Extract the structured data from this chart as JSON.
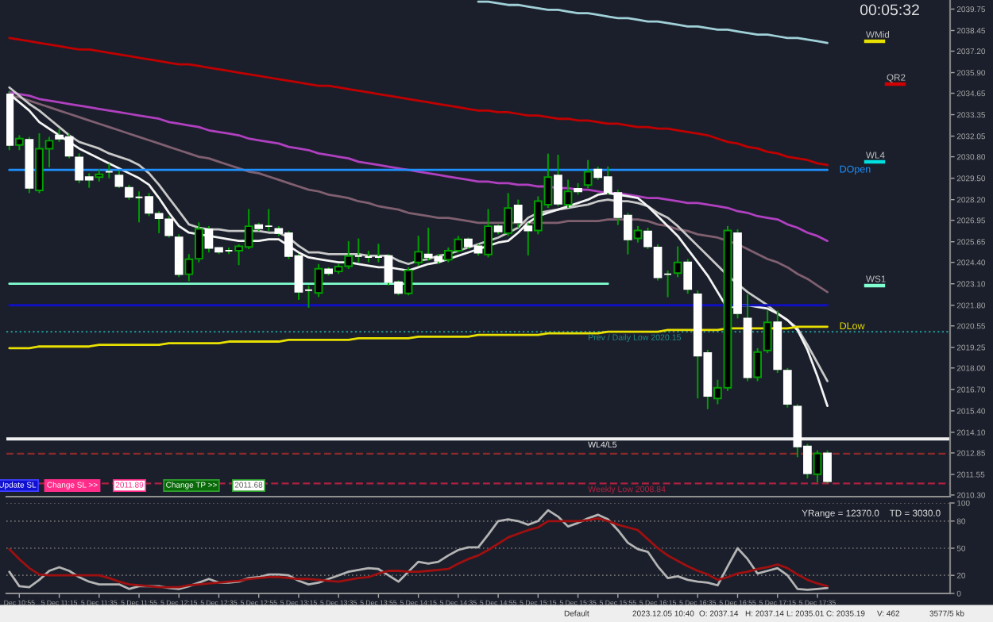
{
  "chart_data": [
    {
      "type": "candlestick",
      "tick_labels": "y",
      "categories": [
        null,
        null,
        null,
        null,
        null,
        null,
        null,
        null,
        null,
        null,
        null,
        null,
        null,
        null,
        null,
        null,
        null,
        null,
        null,
        null,
        null,
        null,
        null,
        null,
        null,
        null,
        null,
        null,
        null,
        null,
        null,
        null,
        null,
        null,
        null,
        null,
        null,
        null,
        null,
        null,
        null,
        null,
        null,
        null,
        null,
        null,
        null,
        null,
        null,
        null,
        null,
        null,
        null,
        null,
        null,
        null,
        null,
        null,
        null,
        null,
        null,
        null,
        null,
        null,
        null,
        null,
        null,
        null,
        null,
        null,
        null,
        null,
        null,
        null,
        null,
        null,
        null,
        null,
        null,
        null,
        null,
        null,
        null
      ],
      "ohlc": [
        [
          2034.58,
          2034.8,
          2031.2,
          2031.51
        ],
        [
          2031.51,
          2032.1,
          2031.2,
          2031.9
        ],
        [
          2031.83,
          2032.0,
          2028.6,
          2028.92
        ],
        [
          2028.76,
          2032.22,
          2028.6,
          2031.28
        ],
        [
          2031.28,
          2032.0,
          2030.15,
          2031.77
        ],
        [
          2032.09,
          2032.48,
          2031.7,
          2031.9
        ],
        [
          2032.0,
          2032.2,
          2030.7,
          2030.86
        ],
        [
          2030.76,
          2031.0,
          2029.2,
          2029.41
        ],
        [
          2029.57,
          2029.8,
          2028.92,
          2029.41
        ],
        [
          2029.57,
          2030.05,
          2029.3,
          2029.73
        ],
        [
          2029.89,
          2030.38,
          2029.5,
          2029.89
        ],
        [
          2029.66,
          2029.96,
          2028.9,
          2029.02
        ],
        [
          2028.92,
          2029.1,
          2028.2,
          2028.37
        ],
        [
          2028.34,
          2028.7,
          2026.82,
          2028.34
        ],
        [
          2028.37,
          2028.6,
          2027.2,
          2027.4
        ],
        [
          2027.34,
          2027.5,
          2026.17,
          2027.08
        ],
        [
          2027.01,
          2027.2,
          2025.9,
          2026.04
        ],
        [
          2025.91,
          2026.1,
          2023.5,
          2023.68
        ],
        [
          2023.68,
          2024.9,
          2023.26,
          2024.59
        ],
        [
          2024.62,
          2026.82,
          2024.4,
          2026.43
        ],
        [
          2026.4,
          2026.6,
          2025.0,
          2025.27
        ],
        [
          2025.27,
          2025.3,
          2024.9,
          2025.04
        ],
        [
          2025.11,
          2025.3,
          2024.9,
          2025.11
        ],
        [
          2025.11,
          2025.5,
          2024.23,
          2025.37
        ],
        [
          2025.33,
          2027.63,
          2025.2,
          2026.59
        ],
        [
          2026.66,
          2026.8,
          2026.3,
          2026.46
        ],
        [
          2026.59,
          2027.63,
          2026.3,
          2026.59
        ],
        [
          2026.43,
          2026.6,
          2026.0,
          2026.17
        ],
        [
          2026.17,
          2026.3,
          2024.6,
          2024.78
        ],
        [
          2024.78,
          2024.9,
          2022.13,
          2022.62
        ],
        [
          2022.71,
          2023.0,
          2021.65,
          2022.71
        ],
        [
          2022.55,
          2024.3,
          2022.3,
          2024.01
        ],
        [
          2023.98,
          2024.1,
          2023.6,
          2023.75
        ],
        [
          2023.85,
          2024.3,
          2023.7,
          2024.14
        ],
        [
          2024.17,
          2025.69,
          2024.0,
          2024.78
        ],
        [
          2024.78,
          2025.85,
          2024.4,
          2024.78
        ],
        [
          2024.72,
          2025.1,
          2024.4,
          2024.72
        ],
        [
          2024.72,
          2025.53,
          2024.4,
          2024.72
        ],
        [
          2024.78,
          2024.9,
          2023.0,
          2023.2
        ],
        [
          2023.2,
          2023.3,
          2022.4,
          2022.55
        ],
        [
          2022.52,
          2024.1,
          2022.4,
          2023.91
        ],
        [
          2024.4,
          2026.01,
          2024.2,
          2025.04
        ],
        [
          2024.88,
          2026.5,
          2024.5,
          2024.72
        ],
        [
          2024.72,
          2024.9,
          2024.3,
          2024.49
        ],
        [
          2024.56,
          2025.3,
          2024.4,
          2025.11
        ],
        [
          2025.11,
          2026.0,
          2025.0,
          2025.79
        ],
        [
          2025.79,
          2025.9,
          2025.2,
          2025.37
        ],
        [
          2025.37,
          2025.5,
          2024.8,
          2024.98
        ],
        [
          2024.88,
          2027.63,
          2024.7,
          2026.59
        ],
        [
          2026.59,
          2026.7,
          2026.1,
          2026.27
        ],
        [
          2026.17,
          2028.6,
          2026.0,
          2027.69
        ],
        [
          2027.85,
          2028.2,
          2026.5,
          2026.82
        ],
        [
          2026.59,
          2026.8,
          2024.82,
          2026.33
        ],
        [
          2026.33,
          2028.4,
          2026.1,
          2028.11
        ],
        [
          2027.89,
          2030.99,
          2027.7,
          2029.57
        ],
        [
          2029.66,
          2030.92,
          2027.8,
          2027.95
        ],
        [
          2027.89,
          2029.41,
          2027.7,
          2028.7
        ],
        [
          2028.86,
          2029.2,
          2028.5,
          2028.7
        ],
        [
          2029.08,
          2030.6,
          2028.9,
          2029.89
        ],
        [
          2030.02,
          2030.2,
          2029.4,
          2029.57
        ],
        [
          2029.57,
          2030.21,
          2028.5,
          2028.66
        ],
        [
          2028.6,
          2028.8,
          2026.66,
          2027.14
        ],
        [
          2027.24,
          2027.4,
          2024.88,
          2025.79
        ],
        [
          2025.85,
          2026.6,
          2025.6,
          2026.33
        ],
        [
          2026.27,
          2026.5,
          2025.2,
          2025.37
        ],
        [
          2025.3,
          2025.5,
          2023.3,
          2023.49
        ],
        [
          2023.68,
          2023.9,
          2022.29,
          2023.68
        ],
        [
          2023.75,
          2025.37,
          2023.5,
          2024.4
        ],
        [
          2024.4,
          2024.6,
          2022.5,
          2022.78
        ],
        [
          2022.46,
          2022.7,
          2016.15,
          2018.74
        ],
        [
          2018.9,
          2019.1,
          2015.5,
          2016.31
        ],
        [
          2016.15,
          2017.28,
          2015.8,
          2016.8
        ],
        [
          2016.8,
          2026.6,
          2016.6,
          2026.33
        ],
        [
          2026.17,
          2026.4,
          2021.0,
          2021.32
        ],
        [
          2021.0,
          2022.45,
          2017.2,
          2017.44
        ],
        [
          2017.44,
          2019.2,
          2017.2,
          2018.96
        ],
        [
          2019.06,
          2021.48,
          2018.9,
          2020.77
        ],
        [
          2020.77,
          2021.48,
          2017.7,
          2017.93
        ],
        [
          2017.83,
          2018.0,
          2015.6,
          2015.83
        ],
        [
          2015.66,
          2015.8,
          2012.59,
          2013.24
        ],
        [
          2013.24,
          2013.4,
          2011.3,
          2011.62
        ],
        [
          2011.56,
          2013.0,
          2011.07,
          2012.82
        ],
        [
          2012.82,
          2013.0,
          2011.0,
          2011.14
        ]
      ],
      "series": [
        {
          "type": "line",
          "color": "#c00000",
          "values": [
            2038.0,
            2037.9,
            2037.8,
            2037.7,
            2037.6,
            2037.5,
            2037.4,
            2037.3,
            2037.3,
            2037.2,
            2037.1,
            2037.0,
            2036.9,
            2036.8,
            2036.7,
            2036.6,
            2036.5,
            2036.4,
            2036.4,
            2036.3,
            2036.2,
            2036.1,
            2036.0,
            2035.9,
            2035.8,
            2035.7,
            2035.6,
            2035.5,
            2035.4,
            2035.3,
            2035.2,
            2035.1,
            2035.1,
            2035.0,
            2034.9,
            2034.8,
            2034.7,
            2034.6,
            2034.5,
            2034.4,
            2034.3,
            2034.2,
            2034.1,
            2034.0,
            2033.9,
            2033.8,
            2033.7,
            2033.6,
            2033.6,
            2033.5,
            2033.5,
            2033.4,
            2033.3,
            2033.3,
            2033.2,
            2033.1,
            2033.1,
            2033.0,
            2033.0,
            2032.9,
            2032.8,
            2032.8,
            2032.7,
            2032.6,
            2032.6,
            2032.5,
            2032.5,
            2032.4,
            2032.3,
            2032.2,
            2032.1,
            2031.9,
            2031.7,
            2031.6,
            2031.4,
            2031.3,
            2031.1,
            2031.0,
            2030.8,
            2030.7,
            2030.6,
            2030.4,
            2030.3
          ]
        },
        {
          "type": "line",
          "color": "#b040c0",
          "values": [
            2034.7,
            2034.6,
            2034.5,
            2034.3,
            2034.2,
            2034.1,
            2034.0,
            2033.9,
            2033.8,
            2033.7,
            2033.6,
            2033.5,
            2033.4,
            2033.3,
            2033.2,
            2033.1,
            2032.9,
            2032.8,
            2032.7,
            2032.6,
            2032.4,
            2032.3,
            2032.2,
            2032.1,
            2031.9,
            2031.8,
            2031.7,
            2031.6,
            2031.4,
            2031.3,
            2031.2,
            2031.0,
            2030.9,
            2030.8,
            2030.7,
            2030.5,
            2030.4,
            2030.3,
            2030.2,
            2030.1,
            2030.0,
            2029.9,
            2029.8,
            2029.7,
            2029.6,
            2029.5,
            2029.4,
            2029.3,
            2029.3,
            2029.2,
            2029.2,
            2029.1,
            2029.1,
            2029.0,
            2029.0,
            2028.9,
            2028.9,
            2028.8,
            2028.8,
            2028.7,
            2028.6,
            2028.6,
            2028.5,
            2028.4,
            2028.3,
            2028.3,
            2028.2,
            2028.1,
            2028.0,
            2028.0,
            2027.9,
            2027.8,
            2027.7,
            2027.5,
            2027.4,
            2027.2,
            2027.1,
            2027.0,
            2026.7,
            2026.5,
            2026.2,
            2026.0,
            2025.7
          ]
        },
        {
          "type": "line",
          "color": "#806070",
          "values": [
            2034.5,
            2034.4,
            2034.2,
            2034.0,
            2033.8,
            2033.6,
            2033.4,
            2033.2,
            2033.0,
            2032.8,
            2032.6,
            2032.4,
            2032.2,
            2032.0,
            2031.8,
            2031.6,
            2031.4,
            2031.2,
            2031.0,
            2030.8,
            2030.7,
            2030.5,
            2030.3,
            2030.1,
            2029.9,
            2029.8,
            2029.6,
            2029.4,
            2029.2,
            2029.0,
            2028.8,
            2028.7,
            2028.5,
            2028.4,
            2028.3,
            2028.1,
            2028.0,
            2027.8,
            2027.7,
            2027.6,
            2027.4,
            2027.3,
            2027.2,
            2027.1,
            2027.1,
            2027.0,
            2026.9,
            2026.8,
            2026.8,
            2026.8,
            2026.8,
            2026.8,
            2026.8,
            2026.8,
            2026.8,
            2026.8,
            2026.9,
            2026.9,
            2026.9,
            2026.9,
            2027.0,
            2027.0,
            2027.0,
            2027.0,
            2026.9,
            2026.7,
            2026.6,
            2026.4,
            2026.3,
            2026.1,
            2026.0,
            2025.9,
            2025.7,
            2025.5,
            2025.2,
            2024.9,
            2024.6,
            2024.4,
            2024.1,
            2023.7,
            2023.4,
            2023.0,
            2022.6
          ]
        },
        {
          "type": "line",
          "color": "#c8c8c8",
          "values": [
            2035.0,
            2034.5,
            2034.0,
            2033.6,
            2033.1,
            2032.6,
            2032.1,
            2031.7,
            2031.5,
            2031.3,
            2031.0,
            2030.8,
            2030.6,
            2030.3,
            2029.8,
            2029.1,
            2028.3,
            2027.5,
            2026.7,
            2026.5,
            2026.4,
            2026.4,
            2026.3,
            2026.3,
            2026.3,
            2026.3,
            2026.2,
            2026.2,
            2025.9,
            2025.4,
            2025.0,
            2025.0,
            2024.9,
            2024.9,
            2024.9,
            2024.9,
            2024.8,
            2024.8,
            2024.8,
            2024.5,
            2024.3,
            2024.5,
            2024.6,
            2024.8,
            2024.9,
            2025.1,
            2025.3,
            2025.5,
            2025.7,
            2025.9,
            2026.2,
            2026.5,
            2027.1,
            2027.4,
            2027.5,
            2027.6,
            2027.7,
            2027.8,
            2027.9,
            2028.1,
            2028.2,
            2028.1,
            2028.1,
            2028.0,
            2027.8,
            2027.4,
            2027.1,
            2026.6,
            2026.0,
            2025.4,
            2024.8,
            2024.2,
            2023.6,
            2023.1,
            2022.6,
            2022.2,
            2021.8,
            2021.3,
            2020.9,
            2020.4,
            2019.4,
            2018.3,
            2017.2
          ]
        },
        {
          "type": "line",
          "color": "#f4f4f4",
          "values": [
            2034.6,
            2034.1,
            2033.6,
            2032.9,
            2032.5,
            2032.1,
            2031.7,
            2031.3,
            2031.0,
            2030.7,
            2030.4,
            2030.1,
            2029.8,
            2029.5,
            2029.1,
            2028.3,
            2027.4,
            2026.6,
            2026.2,
            2026.1,
            2026.0,
            2025.9,
            2025.8,
            2025.7,
            2025.7,
            2025.7,
            2025.8,
            2025.8,
            2025.4,
            2025.0,
            2024.7,
            2024.6,
            2024.5,
            2024.4,
            2024.4,
            2024.3,
            2024.2,
            2024.1,
            2024.1,
            2024.0,
            2023.9,
            2024.1,
            2024.3,
            2024.4,
            2024.6,
            2024.8,
            2025.0,
            2025.2,
            2025.4,
            2025.6,
            2025.7,
            2026.2,
            2026.8,
            2027.2,
            2027.4,
            2027.6,
            2027.8,
            2028.0,
            2028.2,
            2028.5,
            2028.6,
            2028.5,
            2028.4,
            2028.3,
            2027.8,
            2027.2,
            2026.6,
            2026.0,
            2025.2,
            2024.4,
            2023.6,
            2022.6,
            2021.6,
            2021.8,
            2021.8,
            2021.7,
            2021.6,
            2021.3,
            2020.9,
            2020.3,
            2019.1,
            2017.5,
            2015.7
          ]
        },
        {
          "type": "line",
          "color": "#a0d0d8",
          "values": [
            null,
            null,
            null,
            null,
            null,
            null,
            null,
            null,
            null,
            null,
            null,
            null,
            null,
            null,
            null,
            null,
            null,
            null,
            null,
            null,
            null,
            null,
            null,
            null,
            null,
            null,
            null,
            null,
            null,
            null,
            null,
            null,
            null,
            null,
            null,
            null,
            null,
            null,
            null,
            null,
            null,
            null,
            null,
            null,
            null,
            null,
            null,
            2040.2,
            2040.2,
            2040.1,
            2040.0,
            2040.0,
            2039.9,
            2039.8,
            2039.7,
            2039.7,
            2039.6,
            2039.5,
            2039.5,
            2039.4,
            2039.3,
            2039.2,
            2039.2,
            2039.1,
            2039.0,
            2039.0,
            2038.9,
            2038.8,
            2038.7,
            2038.7,
            2038.6,
            2038.5,
            2038.5,
            2038.4,
            2038.3,
            2038.2,
            2038.2,
            2038.1,
            2038.0,
            2038.0,
            2037.9,
            2037.8,
            2037.7
          ]
        },
        {
          "type": "line",
          "color": "#1e90ff",
          "name": "DOpen",
          "values": [
            2030.0,
            2030.0,
            2030.0,
            2030.0,
            2030.0,
            2030.0,
            2030.0,
            2030.0,
            2030.0,
            2030.0,
            2030.0,
            2030.0,
            2030.0,
            2030.0,
            2030.0,
            2030.0,
            2030.0,
            2030.0,
            2030.0,
            2030.0,
            2030.0,
            2030.0,
            2030.0,
            2030.0,
            2030.0,
            2030.0,
            2030.0,
            2030.0,
            2030.0,
            2030.0,
            2030.0,
            2030.0,
            2030.0,
            2030.0,
            2030.0,
            2030.0,
            2030.0,
            2030.0,
            2030.0,
            2030.0,
            2030.0,
            2030.0,
            2030.0,
            2030.0,
            2030.0,
            2030.0,
            2030.0,
            2030.0,
            2030.0,
            2030.0,
            2030.0,
            2030.0,
            2030.0,
            2030.0,
            2030.0,
            2030.0,
            2030.0,
            2030.0,
            2030.0,
            2030.0,
            2030.0,
            2030.0,
            2030.0,
            2030.0,
            2030.0,
            2030.0,
            2030.0,
            2030.0,
            2030.0,
            2030.0,
            2030.0,
            2030.0,
            2030.0,
            2030.0,
            2030.0,
            2030.0,
            2030.0,
            2030.0,
            2030.0,
            2030.0,
            2030.0,
            2030.0,
            2030.0
          ]
        },
        {
          "type": "line",
          "color": "#80ffd0",
          "values": [
            2023.1,
            2023.1,
            2023.1,
            2023.1,
            2023.1,
            2023.1,
            2023.1,
            2023.1,
            2023.1,
            2023.1,
            2023.1,
            2023.1,
            2023.1,
            2023.1,
            2023.1,
            2023.1,
            2023.1,
            2023.1,
            2023.1,
            2023.1,
            2023.1,
            2023.1,
            2023.1,
            2023.1,
            2023.1,
            2023.1,
            2023.1,
            2023.1,
            2023.1,
            2023.1,
            2023.1,
            2023.1,
            2023.1,
            2023.1,
            2023.1,
            2023.1,
            2023.1,
            2023.1,
            2023.1,
            2023.1,
            2023.1,
            2023.1,
            2023.1,
            2023.1,
            2023.1,
            2023.1,
            2023.1,
            2023.1,
            2023.1,
            2023.1,
            2023.1,
            2023.1,
            2023.1,
            2023.1,
            2023.1,
            2023.1,
            2023.1,
            2023.1,
            2023.1,
            2023.1,
            2023.1,
            null,
            null,
            null,
            null,
            null,
            null,
            null,
            null,
            null,
            null,
            null,
            null,
            null,
            null,
            null,
            null,
            null,
            null,
            null,
            null,
            null,
            null
          ]
        },
        {
          "type": "line",
          "color": "#1010c0",
          "values": [
            2021.8,
            2021.8,
            2021.8,
            2021.8,
            2021.8,
            2021.8,
            2021.8,
            2021.8,
            2021.8,
            2021.8,
            2021.8,
            2021.8,
            2021.8,
            2021.8,
            2021.8,
            2021.8,
            2021.8,
            2021.8,
            2021.8,
            2021.8,
            2021.8,
            2021.8,
            2021.8,
            2021.8,
            2021.8,
            2021.8,
            2021.8,
            2021.8,
            2021.8,
            2021.8,
            2021.8,
            2021.8,
            2021.8,
            2021.8,
            2021.8,
            2021.8,
            2021.8,
            2021.8,
            2021.8,
            2021.8,
            2021.8,
            2021.8,
            2021.8,
            2021.8,
            2021.8,
            2021.8,
            2021.8,
            2021.8,
            2021.8,
            2021.8,
            2021.8,
            2021.8,
            2021.8,
            2021.8,
            2021.8,
            2021.8,
            2021.8,
            2021.8,
            2021.8,
            2021.8,
            2021.8,
            2021.8,
            2021.8,
            2021.8,
            2021.8,
            2021.8,
            2021.8,
            2021.8,
            2021.8,
            2021.8,
            2021.8,
            2021.8,
            2021.8,
            2021.8,
            2021.8,
            2021.8,
            2021.8,
            2021.8,
            2021.8,
            2021.8,
            2021.8,
            2021.8,
            2021.8
          ]
        },
        {
          "type": "line",
          "color": "#e8e000",
          "name": "DLow",
          "values": [
            2019.2,
            2019.2,
            2019.2,
            2019.3,
            2019.3,
            2019.3,
            2019.3,
            2019.3,
            2019.3,
            2019.4,
            2019.4,
            2019.4,
            2019.4,
            2019.4,
            2019.4,
            2019.4,
            2019.5,
            2019.5,
            2019.5,
            2019.5,
            2019.5,
            2019.5,
            2019.6,
            2019.6,
            2019.6,
            2019.6,
            2019.6,
            2019.6,
            2019.7,
            2019.7,
            2019.7,
            2019.7,
            2019.7,
            2019.7,
            2019.7,
            2019.8,
            2019.8,
            2019.8,
            2019.8,
            2019.8,
            2019.8,
            2019.9,
            2019.9,
            2019.9,
            2019.9,
            2019.9,
            2019.9,
            2020.0,
            2020.0,
            2020.0,
            2020.0,
            2020.0,
            2020.0,
            2020.0,
            2020.1,
            2020.1,
            2020.1,
            2020.1,
            2020.1,
            2020.1,
            2020.2,
            2020.2,
            2020.2,
            2020.2,
            2020.2,
            2020.2,
            2020.3,
            2020.3,
            2020.3,
            2020.3,
            2020.3,
            2020.3,
            2020.4,
            2020.4,
            2020.4,
            2020.4,
            2020.4,
            2020.4,
            2020.4,
            2020.5,
            2020.5,
            2020.5,
            2020.5
          ]
        }
      ],
      "ref_lines": [
        {
          "axis": "y",
          "value": 2020.2,
          "label": "Prev / Daily Low 2020.15",
          "color": "#208c8c",
          "line_style": "dotted"
        },
        {
          "axis": "y",
          "value": 2013.7,
          "label": "WL4/L5",
          "color": "#f0f0f0",
          "line_style": "solid"
        },
        {
          "axis": "y",
          "value": 2012.8,
          "color": "#8a2a2a",
          "line_style": "dashed"
        },
        {
          "axis": "y",
          "value": 2011.0,
          "label": "Weekly Low 2008.84",
          "color": "#b02040",
          "line_style": "dashed"
        }
      ],
      "annotations": [
        "WMid",
        "QR2",
        "WL4",
        "WS1",
        "Update SL",
        "Change SL >>",
        "2011.89",
        "Change TP >>",
        "2011.68",
        "00:05:32"
      ],
      "ylim": [
        2010.2,
        2040.3
      ],
      "yticks": [
        {
          "value": 2010.3,
          "label": "2010.30"
        },
        2011.55,
        2012.85,
        {
          "value": 2014.1,
          "label": "2014.10"
        },
        {
          "value": 2015.4,
          "label": "2015.40"
        },
        {
          "value": 2016.7,
          "label": "2016.70"
        },
        {
          "value": 2018.0,
          "label": "2018.00"
        },
        2019.25,
        2020.55,
        {
          "value": 2021.8,
          "label": "2021.80"
        },
        {
          "value": 2023.1,
          "label": "2023.10"
        },
        {
          "value": 2024.4,
          "label": "2024.40"
        },
        2025.65,
        2026.95,
        {
          "value": 2028.2,
          "label": "2028.20"
        },
        {
          "value": 2029.5,
          "label": "2029.50"
        },
        {
          "value": 2030.8,
          "label": "2030.80"
        },
        2032.05,
        2033.35,
        2034.65,
        {
          "value": 2035.9,
          "label": "2035.90"
        },
        {
          "value": 2037.2,
          "label": "2037.20"
        },
        2038.45,
        2039.75
      ],
      "marker": "none",
      "line_style": "solid"
    },
    {
      "type": "line",
      "categories": [
        null,
        "Dec 10:55",
        null,
        null,
        null,
        "5 Dec 11:15",
        null,
        null,
        null,
        "5 Dec 11:35",
        null,
        null,
        null,
        "5 Dec 11:55",
        null,
        null,
        null,
        "5 Dec 12:15",
        null,
        null,
        null,
        "5 Dec 12:35",
        null,
        null,
        null,
        "5 Dec 12:55",
        null,
        null,
        null,
        "5 Dec 13:15",
        null,
        null,
        null,
        "5 Dec 13:35",
        null,
        null,
        null,
        "5 Dec 13:55",
        null,
        null,
        null,
        "5 Dec 14:15",
        null,
        null,
        null,
        "5 Dec 14:35",
        null,
        null,
        null,
        "5 Dec 14:55",
        null,
        null,
        null,
        "5 Dec 15:15",
        null,
        null,
        null,
        "5 Dec 15:35",
        null,
        null,
        null,
        "5 Dec 15:55",
        null,
        null,
        null,
        "5 Dec 16:15",
        null,
        null,
        null,
        "5 Dec 16:35",
        null,
        null,
        null,
        "5 Dec 16:55",
        null,
        null,
        null,
        "5 Dec 17:15",
        null,
        null,
        null,
        "5 Dec 17:35",
        null
      ],
      "series": [
        {
          "color": "#b4b4b4",
          "values": [
            24,
            8,
            7,
            15,
            25,
            29,
            25,
            18,
            13,
            10,
            10,
            10,
            5,
            8,
            8,
            8,
            6,
            5,
            8,
            12,
            16,
            12,
            12,
            13,
            17,
            18,
            21,
            21,
            20,
            14,
            10,
            12,
            16,
            20,
            24,
            26,
            28,
            27,
            20,
            13,
            24,
            35,
            33,
            35,
            42,
            48,
            51,
            51,
            65,
            80,
            82,
            80,
            76,
            80,
            92,
            85,
            74,
            78,
            83,
            87,
            82,
            70,
            56,
            49,
            46,
            30,
            17,
            19,
            15,
            13,
            12,
            9,
            30,
            50,
            38,
            22,
            25,
            28,
            20,
            5,
            4,
            5,
            6
          ]
        },
        {
          "color": "#a01010",
          "values": [
            49,
            38,
            28,
            21,
            20,
            20,
            20,
            20,
            20,
            20,
            17,
            13,
            10,
            9,
            8,
            7,
            7,
            7,
            9,
            10,
            11,
            12,
            13,
            14,
            16,
            17,
            18,
            18,
            17,
            16,
            16,
            15,
            14,
            13,
            15,
            17,
            18,
            22,
            25,
            25,
            24,
            24,
            25,
            26,
            27,
            33,
            38,
            42,
            48,
            55,
            62,
            66,
            70,
            73,
            80,
            80,
            80,
            80,
            81,
            83,
            80,
            76,
            73,
            70,
            60,
            50,
            42,
            36,
            30,
            25,
            21,
            15,
            18,
            22,
            24,
            27,
            29,
            32,
            28,
            21,
            15,
            11,
            8
          ]
        }
      ],
      "ylim": [
        0,
        100
      ],
      "yticks": [
        0,
        20,
        50,
        80,
        100
      ],
      "grid": "y",
      "marker": "none",
      "line_style": "solid",
      "annotations": [
        "YRange = 12370.0    TD = 3030.0",
        "Default",
        "2023.12.05 10:40",
        "O: 2037.14",
        "H: 2037.14",
        "L: 2035.01",
        "C: 2035.19",
        "V: 462",
        "3577/5 kb"
      ]
    }
  ]
}
